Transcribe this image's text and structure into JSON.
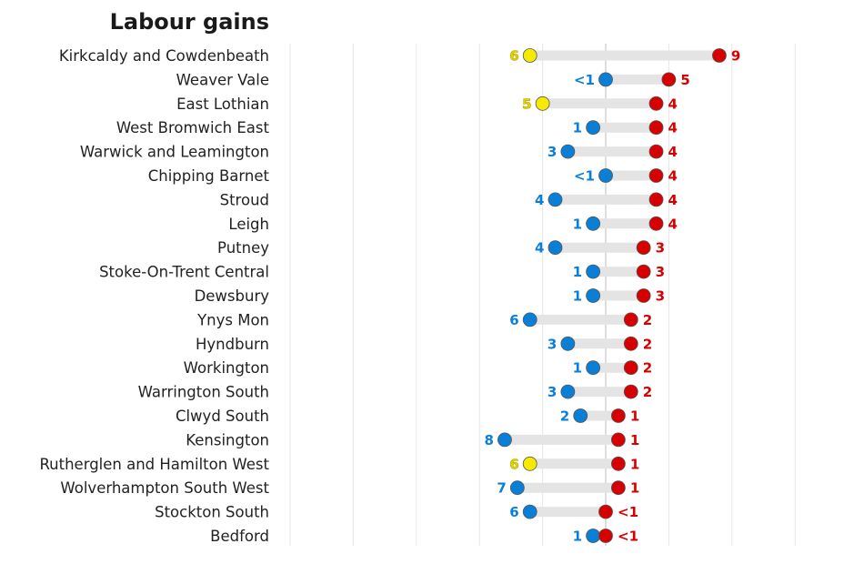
{
  "chart_data": {
    "type": "dumbbell",
    "title": "Labour gains",
    "xlabel": "",
    "ylabel": "",
    "grid": true,
    "xlim": [
      -25,
      15
    ],
    "colors": {
      "labour": "#d60000",
      "blue": "#0a7fd8",
      "yellow": "#f5ea00",
      "yellow_text": "#e0d200",
      "bar": "#e4e4e4",
      "grid": "#e6e6e6",
      "zero_line": "#bdbdbd"
    },
    "rows": [
      {
        "name": "Kirkcaldy and Cowdenbeath",
        "left_party": "yellow",
        "left_value": 6,
        "left_label": "6",
        "right_value": 9,
        "right_label": "9"
      },
      {
        "name": "Weaver Vale",
        "left_party": "blue",
        "left_value": 0,
        "left_label": "<1",
        "right_value": 5,
        "right_label": "5"
      },
      {
        "name": "East Lothian",
        "left_party": "yellow",
        "left_value": 5,
        "left_label": "5",
        "right_value": 4,
        "right_label": "4"
      },
      {
        "name": "West Bromwich East",
        "left_party": "blue",
        "left_value": 1,
        "left_label": "1",
        "right_value": 4,
        "right_label": "4"
      },
      {
        "name": "Warwick and Leamington",
        "left_party": "blue",
        "left_value": 3,
        "left_label": "3",
        "right_value": 4,
        "right_label": "4"
      },
      {
        "name": "Chipping Barnet",
        "left_party": "blue",
        "left_value": 0,
        "left_label": "<1",
        "right_value": 4,
        "right_label": "4"
      },
      {
        "name": "Stroud",
        "left_party": "blue",
        "left_value": 4,
        "left_label": "4",
        "right_value": 4,
        "right_label": "4"
      },
      {
        "name": "Leigh",
        "left_party": "blue",
        "left_value": 1,
        "left_label": "1",
        "right_value": 4,
        "right_label": "4"
      },
      {
        "name": "Putney",
        "left_party": "blue",
        "left_value": 4,
        "left_label": "4",
        "right_value": 3,
        "right_label": "3"
      },
      {
        "name": "Stoke-On-Trent Central",
        "left_party": "blue",
        "left_value": 1,
        "left_label": "1",
        "right_value": 3,
        "right_label": "3"
      },
      {
        "name": "Dewsbury",
        "left_party": "blue",
        "left_value": 1,
        "left_label": "1",
        "right_value": 3,
        "right_label": "3"
      },
      {
        "name": "Ynys Mon",
        "left_party": "blue",
        "left_value": 6,
        "left_label": "6",
        "right_value": 2,
        "right_label": "2"
      },
      {
        "name": "Hyndburn",
        "left_party": "blue",
        "left_value": 3,
        "left_label": "3",
        "right_value": 2,
        "right_label": "2"
      },
      {
        "name": "Workington",
        "left_party": "blue",
        "left_value": 1,
        "left_label": "1",
        "right_value": 2,
        "right_label": "2"
      },
      {
        "name": "Warrington South",
        "left_party": "blue",
        "left_value": 3,
        "left_label": "3",
        "right_value": 2,
        "right_label": "2"
      },
      {
        "name": "Clwyd South",
        "left_party": "blue",
        "left_value": 2,
        "left_label": "2",
        "right_value": 1,
        "right_label": "1"
      },
      {
        "name": "Kensington",
        "left_party": "blue",
        "left_value": 8,
        "left_label": "8",
        "right_value": 1,
        "right_label": "1"
      },
      {
        "name": "Rutherglen and Hamilton West",
        "left_party": "yellow",
        "left_value": 6,
        "left_label": "6",
        "right_value": 1,
        "right_label": "1"
      },
      {
        "name": "Wolverhampton South West",
        "left_party": "blue",
        "left_value": 7,
        "left_label": "7",
        "right_value": 1,
        "right_label": "1"
      },
      {
        "name": "Stockton South",
        "left_party": "blue",
        "left_value": 6,
        "left_label": "6",
        "right_value": 0,
        "right_label": "<1"
      },
      {
        "name": "Bedford",
        "left_party": "blue",
        "left_value": 1,
        "left_label": "1",
        "right_value": 0,
        "right_label": "<1"
      }
    ]
  }
}
